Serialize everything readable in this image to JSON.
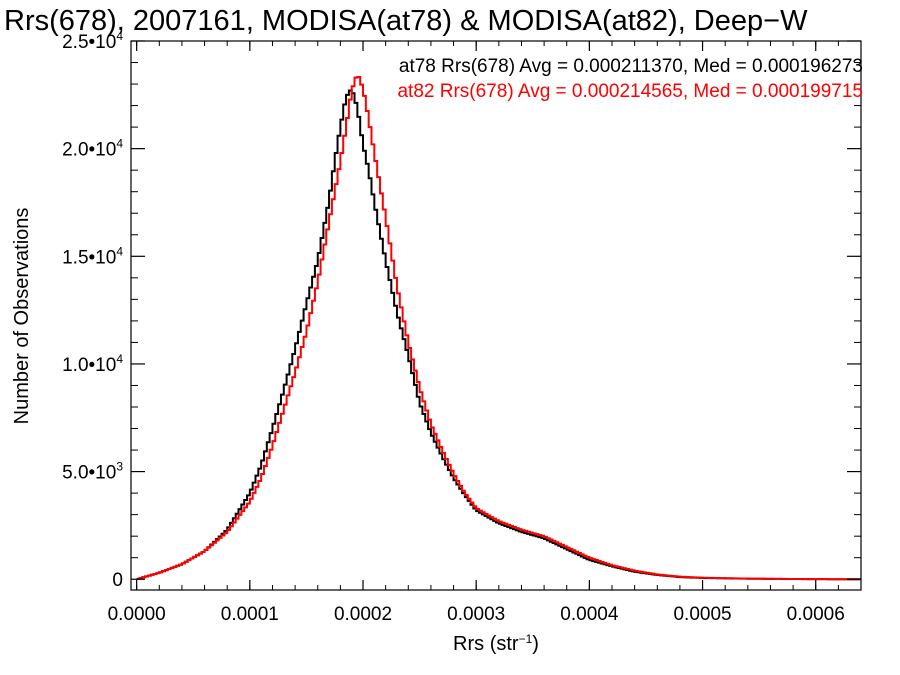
{
  "chart_data": {
    "type": "line",
    "title": "Rrs(678), 2007161, MODISA(at78) & MODISA(at82), Deep−W",
    "xlabel": "Rrs (str",
    "xlabel_sup": "−1",
    "xlabel_suffix": ")",
    "ylabel": "Number of Observations",
    "xlim": [
      -5e-06,
      0.00064
    ],
    "ylim": [
      -500,
      25000
    ],
    "x_ticks": [
      0.0,
      0.0001,
      0.0002,
      0.0003,
      0.0004,
      0.0005,
      0.0006
    ],
    "x_tick_labels": [
      "0.0000",
      "0.0001",
      "0.0002",
      "0.0003",
      "0.0004",
      "0.0005",
      "0.0006"
    ],
    "y_ticks": [
      0,
      5000,
      10000,
      15000,
      20000,
      25000
    ],
    "y_tick_labels": [
      {
        "mantissa": "0",
        "exp": ""
      },
      {
        "mantissa": "5.0•10",
        "exp": "3"
      },
      {
        "mantissa": "1.0•10",
        "exp": "4"
      },
      {
        "mantissa": "1.5•10",
        "exp": "4"
      },
      {
        "mantissa": "2.0•10",
        "exp": "4"
      },
      {
        "mantissa": "2.5•10",
        "exp": "4"
      }
    ],
    "grid": false,
    "legend": "annotations top-right",
    "series": [
      {
        "name": "at78",
        "color": "#000000",
        "annotation": "at78 Rrs(678) Avg = 0.000211370, Med = 0.000196273",
        "x": [
          0.0,
          2e-05,
          4e-05,
          6e-05,
          8e-05,
          0.0001,
          0.00011,
          0.00012,
          0.00013,
          0.00014,
          0.00015,
          0.00016,
          0.00017,
          0.000175,
          0.00018,
          0.000185,
          0.00019,
          0.000195,
          0.0002,
          0.000205,
          0.00021,
          0.00022,
          0.00023,
          0.00024,
          0.00025,
          0.00026,
          0.00027,
          0.00028,
          0.00029,
          0.0003,
          0.00032,
          0.00034,
          0.00036,
          0.00038,
          0.0004,
          0.00042,
          0.00044,
          0.00046,
          0.00048,
          0.0005,
          0.00054,
          0.00058,
          0.00062,
          0.00064
        ],
        "y": [
          0,
          300,
          700,
          1300,
          2300,
          4000,
          5300,
          7000,
          8800,
          10700,
          12800,
          14800,
          17600,
          19400,
          21000,
          22400,
          22800,
          21900,
          20200,
          19000,
          17500,
          14800,
          12400,
          10400,
          8200,
          6800,
          5700,
          4700,
          3900,
          3200,
          2600,
          2200,
          1900,
          1400,
          900,
          600,
          350,
          200,
          100,
          60,
          25,
          10,
          0,
          0
        ]
      },
      {
        "name": "at82",
        "color": "#ff0000",
        "annotation": "at82 Rrs(678) Avg = 0.000214565, Med = 0.000199715",
        "x": [
          0.0,
          2e-05,
          4e-05,
          6e-05,
          8e-05,
          0.0001,
          0.00011,
          0.00012,
          0.00013,
          0.00014,
          0.00015,
          0.00016,
          0.00017,
          0.00018,
          0.000185,
          0.00019,
          0.000195,
          0.0002,
          0.000205,
          0.00021,
          0.00022,
          0.00023,
          0.00024,
          0.00025,
          0.00026,
          0.00027,
          0.00028,
          0.00029,
          0.0003,
          0.00032,
          0.00034,
          0.00036,
          0.00038,
          0.0004,
          0.00042,
          0.00044,
          0.00046,
          0.00048,
          0.0005,
          0.00054,
          0.00058,
          0.00062,
          0.00064
        ],
        "y": [
          0,
          300,
          700,
          1300,
          2200,
          3600,
          4700,
          6200,
          7900,
          9600,
          11500,
          13800,
          16600,
          19400,
          21000,
          22700,
          23500,
          22800,
          21400,
          19800,
          16800,
          13600,
          11000,
          8900,
          7200,
          6000,
          4900,
          4000,
          3300,
          2700,
          2300,
          2000,
          1500,
          1000,
          650,
          400,
          220,
          120,
          70,
          30,
          12,
          0,
          0
        ]
      }
    ]
  }
}
